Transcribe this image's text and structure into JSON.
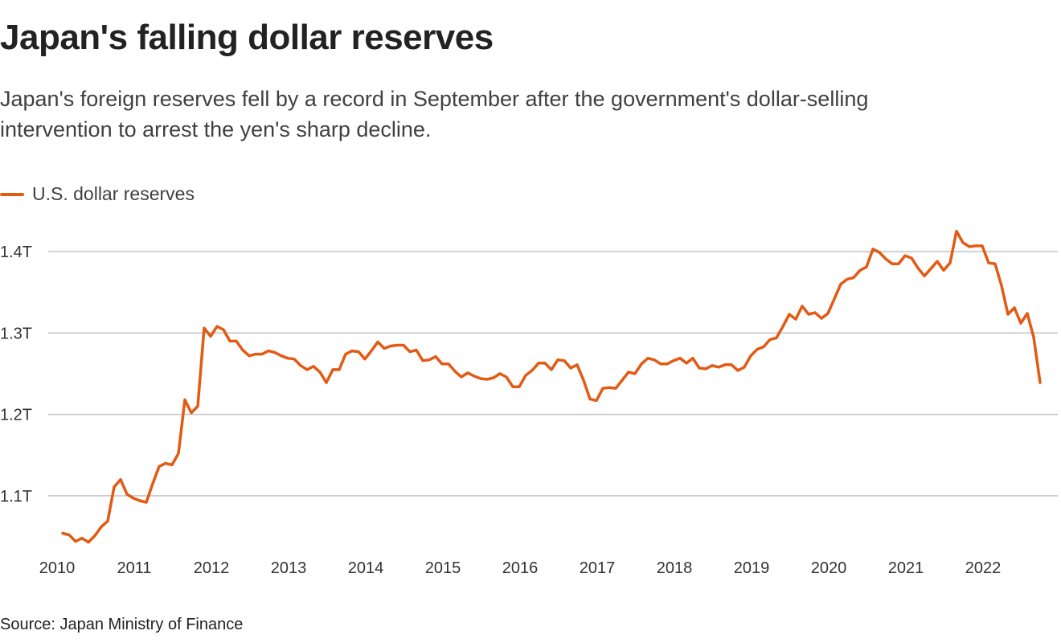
{
  "header": {
    "title": "Japan's falling dollar reserves",
    "subtitle": "Japan's foreign reserves fell by a record in September after the government's dollar-selling intervention to arrest the yen's sharp decline."
  },
  "footer": {
    "source": "Source: Japan Ministry of Finance"
  },
  "colors": {
    "series": "#e35a14",
    "grid": "#c4c4c4",
    "text": "#222222"
  },
  "chart_data": {
    "type": "line",
    "title": "Japan's falling dollar reserves",
    "xlabel": "",
    "ylabel": "",
    "legend": {
      "placement": "top-left",
      "entries": [
        "U.S. dollar reserves"
      ]
    },
    "grid": true,
    "ylim": [
      1.03,
      1.44
    ],
    "yticks": [
      1.1,
      1.2,
      1.3,
      1.4
    ],
    "ytick_labels": [
      "1.1T",
      "1.2T",
      "1.3T",
      "1.4T"
    ],
    "xticks": [
      "2010",
      "2011",
      "2012",
      "2013",
      "2014",
      "2015",
      "2016",
      "2017",
      "2018",
      "2019",
      "2020",
      "2021",
      "2022"
    ],
    "x_start": "2010-01",
    "x_end": "2022-09",
    "x_frequency": "monthly",
    "units": "trillion USD",
    "series": [
      {
        "name": "U.S. dollar reserves",
        "values": [
          1.054,
          1.052,
          1.044,
          1.048,
          1.043,
          1.051,
          1.062,
          1.069,
          1.111,
          1.12,
          1.102,
          1.097,
          1.094,
          1.092,
          1.115,
          1.136,
          1.14,
          1.138,
          1.152,
          1.218,
          1.202,
          1.21,
          1.306,
          1.296,
          1.308,
          1.304,
          1.29,
          1.29,
          1.279,
          1.272,
          1.274,
          1.274,
          1.278,
          1.276,
          1.272,
          1.269,
          1.268,
          1.26,
          1.255,
          1.259,
          1.252,
          1.239,
          1.255,
          1.255,
          1.274,
          1.278,
          1.277,
          1.268,
          1.278,
          1.289,
          1.281,
          1.284,
          1.285,
          1.285,
          1.277,
          1.279,
          1.266,
          1.267,
          1.271,
          1.262,
          1.262,
          1.253,
          1.246,
          1.251,
          1.247,
          1.244,
          1.243,
          1.245,
          1.25,
          1.246,
          1.234,
          1.234,
          1.248,
          1.254,
          1.263,
          1.263,
          1.255,
          1.267,
          1.266,
          1.257,
          1.261,
          1.242,
          1.219,
          1.217,
          1.232,
          1.233,
          1.232,
          1.242,
          1.252,
          1.25,
          1.262,
          1.269,
          1.267,
          1.262,
          1.262,
          1.266,
          1.269,
          1.263,
          1.269,
          1.257,
          1.256,
          1.26,
          1.258,
          1.261,
          1.261,
          1.254,
          1.258,
          1.272,
          1.28,
          1.283,
          1.292,
          1.294,
          1.308,
          1.323,
          1.317,
          1.333,
          1.323,
          1.325,
          1.318,
          1.324,
          1.342,
          1.36,
          1.366,
          1.368,
          1.377,
          1.381,
          1.403,
          1.399,
          1.391,
          1.385,
          1.385,
          1.395,
          1.392,
          1.38,
          1.37,
          1.379,
          1.388,
          1.377,
          1.386,
          1.425,
          1.411,
          1.406,
          1.407,
          1.407,
          1.386,
          1.385,
          1.358,
          1.323,
          1.331,
          1.312,
          1.324,
          1.295,
          1.239
        ]
      }
    ]
  }
}
